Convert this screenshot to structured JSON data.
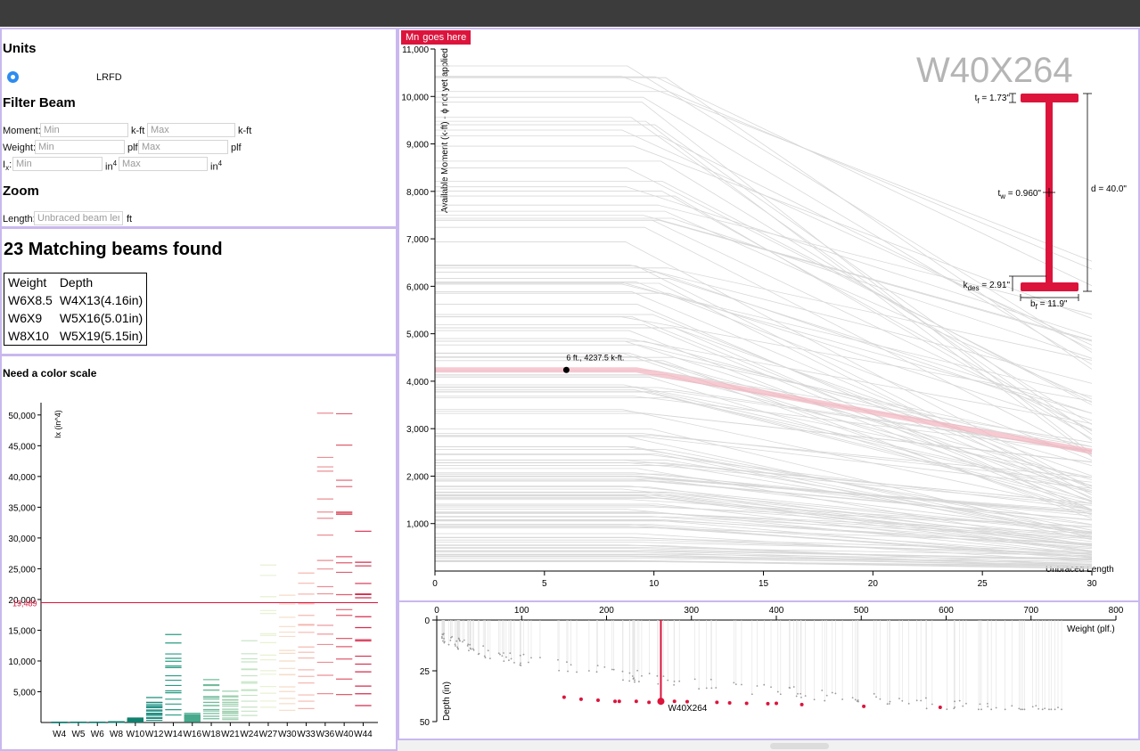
{
  "units": {
    "title": "Units",
    "option": "LRFD"
  },
  "filter": {
    "title": "Filter Beam",
    "moment_label": "Moment:",
    "moment_unit": "k-ft",
    "weight_label": "Weight:",
    "weight_unit": "plf",
    "ix_label_main": "I",
    "ix_label_sub": "x",
    "ix_label_colon": ":",
    "ix_unit_main": "in",
    "ix_unit_sup": "4",
    "min_placeholder": "Min",
    "max_placeholder": "Max"
  },
  "zoom": {
    "title": "Zoom",
    "length_label": "Length:",
    "length_placeholder": "Unbraced beam length",
    "length_unit": "ft"
  },
  "results": {
    "title": "23 Matching beams found",
    "headers": [
      "Weight",
      "Depth"
    ],
    "rows": [
      [
        "W6X8.5",
        "W4X13(4.16in)"
      ],
      [
        "W6X9",
        "W5X16(5.01in)"
      ],
      [
        "W8X10",
        "W5X19(5.15in)"
      ]
    ]
  },
  "histogram": {
    "title": "Need a color scale",
    "ylabel": "Ix (in^4)",
    "threshold_label": "19,489"
  },
  "main": {
    "badge": "Mn",
    "badge_rest": "goes here",
    "ylabel": "Available Moment (k-ft) - ϕ not yet applied",
    "xlabel": "Unbraced Length",
    "selected_section": "W40X264",
    "point_label": "6 ft., 4237.5 k-ft.",
    "dims": {
      "tf_main": "t",
      "tf_sub": "f",
      "tf_val": " = 1.73\"",
      "tw_main": "t",
      "tw_sub": "w",
      "tw_val": " = 0.960\"",
      "d": "d = 40.0\"",
      "kdes_main": "k",
      "kdes_sub": "des",
      "kdes_val": " = 2.91\"",
      "bf_main": "b",
      "bf_sub": "f",
      "bf_val": " = 11.9\""
    }
  },
  "scatter": {
    "xlabel": "Weight (plf.)",
    "ylabel": "Depth (in)",
    "selected_label": "W40X264"
  },
  "colors": {
    "accent": "#dc143c",
    "panel_border": "#c9b8ef",
    "teal": "#1a8c7e",
    "radio": "#2d8cf0"
  },
  "chart_data": [
    {
      "type": "bar",
      "title": "Need a color scale",
      "ylabel": "Ix (in^4)",
      "categories": [
        "W4",
        "W5",
        "W6",
        "W8",
        "W10",
        "W12",
        "W14",
        "W16",
        "W18",
        "W21",
        "W24",
        "W27",
        "W30",
        "W33",
        "W36",
        "W40",
        "W44"
      ],
      "yticks": [
        5000,
        10000,
        15000,
        20000,
        25000,
        30000,
        35000,
        40000,
        45000,
        50000
      ],
      "ylim": [
        0,
        52000
      ],
      "threshold": 19489,
      "series": [
        {
          "values": [
            12,
            26,
            41,
            120,
            720,
            4060,
            14300,
            1490,
            6970,
            5090,
            13300,
            25600,
            20700,
            24300,
            50300,
            50200,
            31100
          ]
        }
      ]
    },
    {
      "type": "line",
      "ylabel": "Available Moment (k-ft) - ϕ not yet applied",
      "xlabel": "Unbraced Length",
      "xlim": [
        0,
        30
      ],
      "ylim": [
        0,
        11000
      ],
      "xticks": [
        0,
        5,
        10,
        15,
        20,
        25,
        30
      ],
      "yticks": [
        1000,
        2000,
        3000,
        4000,
        5000,
        6000,
        7000,
        8000,
        9000,
        10000,
        11000
      ],
      "highlight_series": {
        "name": "W40X264",
        "x": [
          0,
          9.2,
          30
        ],
        "y": [
          4237.5,
          4237.5,
          2520
        ]
      },
      "marked_point": {
        "x": 6,
        "y": 4237.5
      }
    },
    {
      "type": "scatter",
      "xlabel": "Weight (plf.)",
      "ylabel": "Depth (in)",
      "xlim": [
        0,
        800
      ],
      "ylim": [
        0,
        50
      ],
      "xticks": [
        0,
        100,
        200,
        300,
        400,
        500,
        600,
        700,
        800
      ],
      "yticks": [
        0,
        25,
        50
      ],
      "selected": {
        "name": "W40X264",
        "x": 264,
        "y": 40
      }
    }
  ]
}
